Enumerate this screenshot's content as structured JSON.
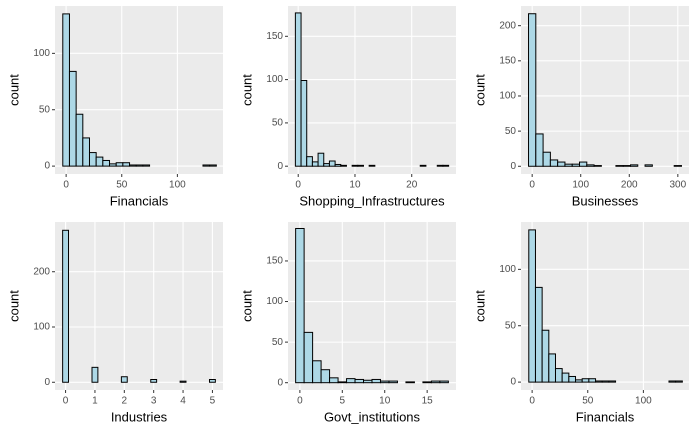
{
  "chart_data": [
    {
      "type": "histogram",
      "xlabel": "Financials",
      "ylabel": "count",
      "bins": [
        -3,
        3,
        9,
        15,
        21,
        27,
        33,
        39,
        45,
        51,
        57,
        63,
        69,
        75,
        81,
        87,
        93,
        99,
        105,
        111,
        117,
        123,
        129,
        135
      ],
      "counts": [
        135,
        84,
        46,
        25,
        12,
        8,
        5,
        2,
        3,
        3,
        1,
        1,
        1,
        0,
        0,
        0,
        0,
        0,
        0,
        0,
        0,
        1,
        1
      ],
      "xlim": [
        -10,
        141
      ],
      "ylim": [
        -7,
        142
      ],
      "xticks": [
        0,
        50,
        100
      ],
      "yticks": [
        0,
        50,
        100
      ],
      "color": "#add8e6",
      "edgecolor": "#000000",
      "grid": true
    },
    {
      "type": "histogram",
      "xlabel": "Shopping_Infrastructures",
      "ylabel": "count",
      "bins": [
        -0.5,
        0.5,
        1.5,
        2.5,
        3.5,
        4.5,
        5.5,
        6.5,
        7.5,
        8.5,
        9.5,
        10.5,
        11.5,
        12.5,
        13.5,
        14.5,
        15.5,
        16.5,
        17.5,
        18.5,
        19.5,
        20.5,
        21.5,
        22.5,
        23.5,
        24.5,
        25.5,
        26.5
      ],
      "counts": [
        177,
        99,
        11,
        5,
        15,
        3,
        6,
        2,
        1,
        0,
        1,
        1,
        0,
        1,
        0,
        0,
        0,
        0,
        0,
        0,
        0,
        0,
        1,
        0,
        0,
        1,
        1
      ],
      "xlim": [
        -1.8,
        27.8
      ],
      "ylim": [
        -9,
        185
      ],
      "xticks": [
        0,
        10,
        20
      ],
      "yticks": [
        0,
        50,
        100,
        150
      ],
      "color": "#add8e6",
      "edgecolor": "#000000",
      "grid": true
    },
    {
      "type": "histogram",
      "xlabel": "Businesses",
      "ylabel": "count",
      "bins": [
        -7.5,
        7.5,
        22.5,
        37.5,
        52.5,
        67.5,
        82.5,
        97.5,
        112.5,
        127.5,
        142.5,
        157.5,
        172.5,
        187.5,
        202.5,
        217.5,
        232.5,
        247.5,
        262.5,
        277.5,
        292.5,
        307.5
      ],
      "counts": [
        217,
        46,
        20,
        9,
        6,
        3,
        3,
        6,
        2,
        1,
        0,
        0,
        1,
        1,
        2,
        0,
        2,
        0,
        0,
        0,
        1
      ],
      "xlim": [
        -23,
        323
      ],
      "ylim": [
        -11,
        228
      ],
      "xticks": [
        0,
        100,
        200,
        300
      ],
      "yticks": [
        0,
        50,
        100,
        150,
        200
      ],
      "color": "#add8e6",
      "edgecolor": "#000000",
      "grid": true
    },
    {
      "type": "histogram",
      "xlabel": "Industries",
      "ylabel": "count",
      "bins": [
        -0.1,
        0.1,
        0.3,
        0.5,
        0.7,
        0.9,
        1.1,
        1.3,
        1.5,
        1.7,
        1.9,
        2.1,
        2.3,
        2.5,
        2.7,
        2.9,
        3.1,
        3.3,
        3.5,
        3.7,
        3.9,
        4.1,
        4.3,
        4.5,
        4.7,
        4.9,
        5.1
      ],
      "counts": [
        275,
        0,
        0,
        0,
        0,
        27,
        0,
        0,
        0,
        0,
        10,
        0,
        0,
        0,
        0,
        5,
        0,
        0,
        0,
        0,
        2,
        0,
        0,
        0,
        0,
        5
      ],
      "xlim": [
        -0.36,
        5.36
      ],
      "ylim": [
        -14,
        290
      ],
      "xticks": [
        0,
        1,
        2,
        3,
        4,
        5
      ],
      "yticks": [
        0,
        100,
        200
      ],
      "color": "#add8e6",
      "edgecolor": "#000000",
      "grid": true
    },
    {
      "type": "histogram",
      "xlabel": "Govt_institutions",
      "ylabel": "count",
      "bins": [
        -0.5,
        0.5,
        1.5,
        2.5,
        3.5,
        4.5,
        5.5,
        6.5,
        7.5,
        8.5,
        9.5,
        10.5,
        11.5,
        12.5,
        13.5,
        14.5,
        15.5,
        16.5,
        17.5
      ],
      "counts": [
        190,
        62,
        27,
        16,
        6,
        1,
        5,
        4,
        3,
        4,
        2,
        2,
        0,
        1,
        0,
        1,
        2,
        2
      ],
      "xlim": [
        -1.4,
        18.4
      ],
      "ylim": [
        -9,
        198
      ],
      "xticks": [
        0,
        5,
        10,
        15
      ],
      "yticks": [
        0,
        50,
        100,
        150
      ],
      "color": "#add8e6",
      "edgecolor": "#000000",
      "grid": true
    },
    {
      "type": "histogram",
      "xlabel": "Financials",
      "ylabel": "count",
      "bins": [
        -3,
        3,
        9,
        15,
        21,
        27,
        33,
        39,
        45,
        51,
        57,
        63,
        69,
        75,
        81,
        87,
        93,
        99,
        105,
        111,
        117,
        123,
        129,
        135
      ],
      "counts": [
        135,
        84,
        46,
        25,
        12,
        8,
        5,
        2,
        3,
        3,
        1,
        1,
        1,
        0,
        0,
        0,
        0,
        0,
        0,
        0,
        0,
        1,
        1
      ],
      "xlim": [
        -10,
        141
      ],
      "ylim": [
        -7,
        142
      ],
      "xticks": [
        0,
        50,
        100
      ],
      "yticks": [
        0,
        50,
        100
      ],
      "color": "#add8e6",
      "edgecolor": "#000000",
      "grid": true
    }
  ]
}
